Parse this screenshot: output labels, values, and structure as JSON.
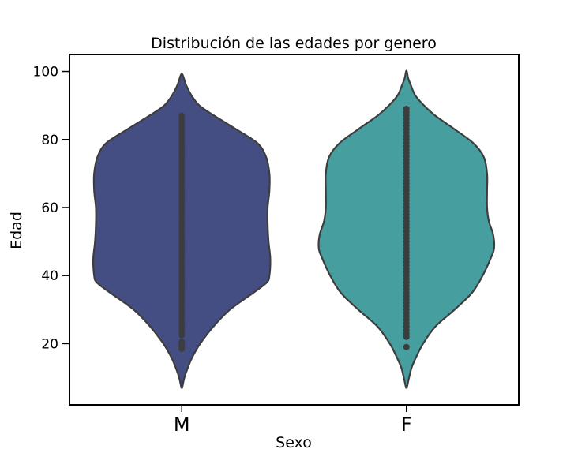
{
  "chart_data": {
    "type": "violin",
    "title": "Distribución de las edades por genero",
    "xlabel": "Sexo",
    "ylabel": "Edad",
    "ylim": [
      2,
      105
    ],
    "yticks": [
      20,
      40,
      60,
      80,
      100
    ],
    "grid": false,
    "legend": "none",
    "categories": [
      "M",
      "F"
    ],
    "colors": {
      "M": "#454e83",
      "F": "#479e9f",
      "outline": "#3d3d3d",
      "points": "#3d3d3d"
    },
    "violins": [
      {
        "category": "M",
        "min": 7,
        "max": 99,
        "profile": [
          [
            7,
            0.005
          ],
          [
            10,
            0.03
          ],
          [
            13,
            0.07
          ],
          [
            16,
            0.12
          ],
          [
            20,
            0.21
          ],
          [
            25,
            0.36
          ],
          [
            30,
            0.55
          ],
          [
            35,
            0.82
          ],
          [
            38,
            0.97
          ],
          [
            40,
            1.0
          ],
          [
            45,
            1.01
          ],
          [
            50,
            0.99
          ],
          [
            55,
            0.98
          ],
          [
            60,
            0.98
          ],
          [
            65,
            1.0
          ],
          [
            70,
            1.0
          ],
          [
            75,
            0.96
          ],
          [
            79,
            0.86
          ],
          [
            83,
            0.62
          ],
          [
            87,
            0.37
          ],
          [
            90,
            0.2
          ],
          [
            93,
            0.11
          ],
          [
            96,
            0.05
          ],
          [
            99,
            0.01
          ]
        ],
        "points": [
          18.5,
          19,
          19.5,
          20,
          20.5,
          22.5,
          23,
          24,
          25,
          26,
          27,
          28,
          29,
          30,
          31,
          32,
          33,
          34,
          35,
          36,
          37,
          38,
          39,
          40,
          41,
          42,
          43,
          44,
          45,
          46,
          47,
          48,
          49,
          50,
          51,
          52,
          53,
          54,
          55,
          56,
          57,
          58,
          59,
          60,
          61,
          62,
          63,
          64,
          65,
          66,
          67,
          68,
          69,
          70,
          71,
          72,
          73,
          74,
          75,
          76,
          77,
          78,
          79,
          80,
          81,
          82,
          83,
          84,
          85,
          86,
          87
        ]
      },
      {
        "category": "F",
        "min": 7,
        "max": 100,
        "profile": [
          [
            7,
            0.005
          ],
          [
            10,
            0.03
          ],
          [
            13,
            0.06
          ],
          [
            16,
            0.11
          ],
          [
            20,
            0.19
          ],
          [
            25,
            0.33
          ],
          [
            30,
            0.55
          ],
          [
            35,
            0.75
          ],
          [
            40,
            0.87
          ],
          [
            45,
            0.96
          ],
          [
            48,
            1.0
          ],
          [
            52,
            0.99
          ],
          [
            56,
            0.94
          ],
          [
            60,
            0.92
          ],
          [
            65,
            0.92
          ],
          [
            70,
            0.92
          ],
          [
            75,
            0.88
          ],
          [
            79,
            0.76
          ],
          [
            83,
            0.55
          ],
          [
            87,
            0.33
          ],
          [
            90,
            0.2
          ],
          [
            93,
            0.1
          ],
          [
            96,
            0.05
          ],
          [
            98,
            0.02
          ],
          [
            100,
            0.005
          ]
        ],
        "points": [
          19,
          22,
          23,
          24,
          25,
          26,
          27,
          28,
          29,
          30,
          31,
          32,
          33,
          34,
          35,
          36,
          37,
          38,
          39,
          40,
          41,
          42,
          43,
          44,
          45,
          46,
          47,
          48,
          49,
          50,
          51,
          52,
          53,
          54,
          55,
          56,
          57,
          58,
          59,
          60,
          61,
          62,
          63,
          64,
          65,
          66,
          67,
          68,
          69,
          70,
          71,
          72,
          73,
          74,
          75,
          76,
          77,
          78,
          79,
          80,
          81,
          82,
          83,
          84,
          85,
          86,
          87,
          88,
          89
        ]
      }
    ]
  }
}
